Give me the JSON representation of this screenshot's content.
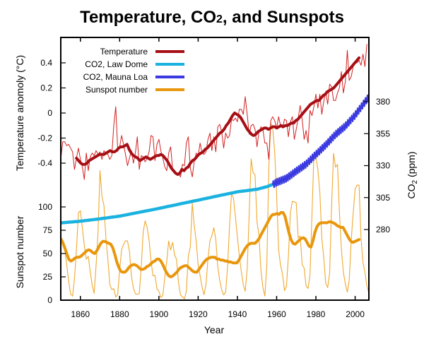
{
  "chart_data": {
    "type": "line",
    "title": "Temperature, CO2, and Sunspots",
    "title_parts": {
      "pre": "Temperature, CO",
      "sub": "2",
      "post": ", and Sunspots"
    },
    "xlabel": "Year",
    "xlim": [
      1850,
      2007
    ],
    "x_ticks": [
      1860,
      1880,
      1900,
      1920,
      1940,
      1960,
      1980,
      2000
    ],
    "axes": {
      "temperature": {
        "label": "Temperature anomoly (°C)",
        "side": "left-upper",
        "ticks": [
          -0.4,
          -0.2,
          0,
          0.2,
          0.4
        ],
        "tick_labels": [
          "-0.4",
          "-0.2",
          "0",
          "0.2",
          "0.4"
        ]
      },
      "sunspot": {
        "label": "Sunspot number",
        "side": "left-lower",
        "ticks": [
          0,
          25,
          50,
          75,
          100
        ],
        "tick_labels": [
          "0",
          "25",
          "50",
          "75",
          "100"
        ]
      },
      "co2": {
        "label_pre": "CO",
        "label_sub": "2",
        "label_post": " (ppm)",
        "side": "right",
        "ticks": [
          280,
          305,
          330,
          355,
          380
        ],
        "tick_labels": [
          "280",
          "305",
          "330",
          "355",
          "380"
        ]
      }
    },
    "legend": {
      "position": "top-left",
      "entries": [
        {
          "label": "Temperature",
          "color": "#a50f15"
        },
        {
          "label": "CO2, Law Dome",
          "color": "#1ab2e0"
        },
        {
          "label": "CO2, Mauna Loa",
          "color": "#3a3ae0"
        },
        {
          "label": "Sunspot number",
          "color": "#e8960c"
        }
      ]
    },
    "colors": {
      "temperature_annual": "#d42020",
      "temperature_smooth": "#a50f15",
      "co2_law_dome": "#1ab2e0",
      "co2_mauna_loa": "#3a3ae0",
      "sunspot_annual": "#f0a830",
      "sunspot_smooth": "#e8960c"
    },
    "series": [
      {
        "name": "Temperature (annual)",
        "axis": "temperature",
        "x_start": 1850,
        "values": [
          -0.37,
          -0.23,
          -0.23,
          -0.26,
          -0.25,
          -0.28,
          -0.31,
          -0.45,
          -0.36,
          -0.28,
          -0.37,
          -0.43,
          -0.53,
          -0.32,
          -0.46,
          -0.35,
          -0.32,
          -0.34,
          -0.3,
          -0.33,
          -0.31,
          -0.37,
          -0.3,
          -0.32,
          -0.33,
          -0.37,
          -0.34,
          -0.1,
          0.05,
          -0.28,
          -0.27,
          -0.18,
          -0.25,
          -0.33,
          -0.42,
          -0.36,
          -0.3,
          -0.4,
          -0.32,
          -0.19,
          -0.45,
          -0.34,
          -0.35,
          -0.39,
          -0.36,
          -0.31,
          -0.18,
          -0.19,
          -0.38,
          -0.25,
          -0.21,
          -0.3,
          -0.36,
          -0.43,
          -0.46,
          -0.32,
          -0.27,
          -0.45,
          -0.46,
          -0.49,
          -0.48,
          -0.51,
          -0.41,
          -0.42,
          -0.24,
          -0.19,
          -0.44,
          -0.51,
          -0.39,
          -0.32,
          -0.34,
          -0.24,
          -0.32,
          -0.33,
          -0.31,
          -0.21,
          -0.16,
          -0.3,
          -0.19,
          -0.31,
          -0.11,
          -0.09,
          -0.15,
          -0.28,
          -0.16,
          -0.2,
          -0.18,
          -0.05,
          -0.06,
          -0.04,
          -0.07,
          0.03,
          0.03,
          -0.01,
          0.13,
          -0.01,
          -0.17,
          -0.1,
          -0.09,
          -0.13,
          -0.27,
          -0.15,
          -0.11,
          -0.13,
          -0.24,
          -0.24,
          -0.37,
          -0.06,
          -0.03,
          -0.06,
          -0.12,
          -0.03,
          -0.1,
          -0.12,
          -0.05,
          -0.06,
          -0.19,
          -0.07,
          -0.03,
          -0.21,
          -0.13,
          -0.04,
          0.06,
          -0.05,
          -0.21,
          -0.14,
          -0.24,
          0.02,
          -0.02,
          0.05,
          0.15,
          0.04,
          0.15,
          -0.01,
          0.09,
          0.17,
          0.07,
          0.23,
          0.21,
          0.1,
          0.1,
          0.16,
          0.2,
          0.33,
          0.16,
          0.25,
          0.5,
          0.26,
          0.29,
          0.37,
          0.4,
          0.4,
          0.42,
          0.38,
          0.47,
          0.37,
          0.55
        ]
      },
      {
        "name": "Temperature (smoothed)",
        "axis": "temperature",
        "x_start": 1858,
        "x_end": 2002,
        "values": [
          -0.36,
          -0.38,
          -0.4,
          -0.41,
          -0.41,
          -0.4,
          -0.38,
          -0.37,
          -0.36,
          -0.35,
          -0.34,
          -0.33,
          -0.33,
          -0.33,
          -0.32,
          -0.31,
          -0.3,
          -0.31,
          -0.31,
          -0.3,
          -0.28,
          -0.27,
          -0.27,
          -0.26,
          -0.25,
          -0.29,
          -0.32,
          -0.34,
          -0.35,
          -0.36,
          -0.38,
          -0.37,
          -0.36,
          -0.35,
          -0.36,
          -0.37,
          -0.36,
          -0.35,
          -0.34,
          -0.34,
          -0.33,
          -0.34,
          -0.36,
          -0.38,
          -0.41,
          -0.44,
          -0.46,
          -0.48,
          -0.49,
          -0.48,
          -0.45,
          -0.46,
          -0.44,
          -0.43,
          -0.4,
          -0.38,
          -0.37,
          -0.35,
          -0.33,
          -0.32,
          -0.31,
          -0.29,
          -0.28,
          -0.26,
          -0.24,
          -0.22,
          -0.2,
          -0.18,
          -0.16,
          -0.15,
          -0.13,
          -0.1,
          -0.08,
          -0.05,
          -0.02,
          0.0,
          -0.01,
          -0.02,
          -0.04,
          -0.07,
          -0.1,
          -0.13,
          -0.15,
          -0.17,
          -0.18,
          -0.17,
          -0.15,
          -0.14,
          -0.13,
          -0.12,
          -0.12,
          -0.13,
          -0.12,
          -0.11,
          -0.11,
          -0.12,
          -0.11,
          -0.1,
          -0.11,
          -0.1,
          -0.1,
          -0.09,
          -0.08,
          -0.08,
          -0.06,
          -0.05,
          -0.03,
          -0.01,
          0.01,
          0.03,
          0.05,
          0.07,
          0.08,
          0.09,
          0.1,
          0.1,
          0.12,
          0.14,
          0.15,
          0.17,
          0.18,
          0.19,
          0.2,
          0.22,
          0.24,
          0.26,
          0.28,
          0.3,
          0.32,
          0.34,
          0.36,
          0.38,
          0.4,
          0.42,
          0.44
        ]
      },
      {
        "name": "CO2, Law Dome",
        "axis": "co2",
        "x": [
          1850,
          1860,
          1870,
          1880,
          1890,
          1900,
          1910,
          1920,
          1930,
          1940,
          1950,
          1955,
          1960
        ],
        "values": [
          285.2,
          286.5,
          288.4,
          290.5,
          293.5,
          296.5,
          299.8,
          303.0,
          306.3,
          309.5,
          311.5,
          313.5,
          316.5
        ]
      },
      {
        "name": "CO2, Mauna Loa",
        "axis": "co2",
        "x": [
          1958,
          1960,
          1965,
          1970,
          1975,
          1980,
          1985,
          1990,
          1995,
          2000,
          2005,
          2007
        ],
        "values": [
          315.0,
          316.9,
          320.0,
          325.7,
          331.1,
          338.7,
          346.1,
          354.4,
          360.9,
          369.5,
          379.8,
          383.7
        ],
        "seasonal_amplitude_ppm": 3.2
      },
      {
        "name": "Sunspot number (annual)",
        "axis": "sunspot",
        "x_start": 1850,
        "values": [
          66.5,
          64.5,
          54.1,
          39.0,
          20.6,
          6.7,
          4.3,
          22.7,
          54.8,
          93.8,
          95.8,
          77.2,
          59.1,
          44.0,
          47.0,
          30.5,
          16.3,
          7.3,
          37.6,
          74.0,
          139.0,
          111.2,
          101.6,
          66.2,
          44.7,
          17.0,
          11.3,
          12.4,
          3.4,
          6.0,
          32.3,
          54.3,
          59.7,
          63.7,
          63.5,
          52.2,
          25.4,
          13.1,
          6.8,
          6.3,
          7.1,
          35.6,
          73.0,
          85.1,
          78.0,
          64.0,
          41.8,
          26.2,
          26.7,
          12.1,
          9.5,
          2.7,
          5.0,
          24.4,
          42.0,
          63.5,
          53.8,
          62.0,
          48.5,
          43.9,
          18.6,
          5.7,
          3.6,
          1.4,
          9.6,
          47.4,
          57.1,
          103.9,
          80.6,
          63.6,
          37.6,
          26.1,
          14.2,
          5.8,
          16.7,
          44.3,
          63.9,
          69.0,
          77.8,
          64.9,
          35.7,
          21.2,
          11.1,
          5.7,
          8.7,
          36.1,
          79.7,
          114.4,
          109.6,
          88.8,
          67.8,
          47.5,
          30.6,
          16.3,
          9.6,
          33.2,
          92.6,
          151.6,
          136.3,
          134.7,
          83.9,
          69.4,
          31.5,
          13.9,
          4.4,
          38.0,
          141.7,
          190.2,
          184.8,
          159.0,
          112.3,
          53.9,
          37.6,
          27.9,
          10.2,
          15.1,
          47.0,
          93.8,
          105.9,
          105.5,
          104.5,
          66.6,
          68.9,
          38.0,
          34.5,
          15.5,
          12.6,
          27.5,
          92.5,
          155.4,
          154.6,
          140.4,
          115.9,
          66.6,
          45.9,
          17.9,
          13.4,
          29.2,
          100.2,
          157.6,
          142.6,
          145.7,
          94.3,
          54.6,
          29.9,
          17.5,
          8.6,
          21.5,
          64.3,
          93.3,
          119.6,
          123.3,
          123.3,
          65.9,
          40.4,
          29.8,
          15.2,
          7.5
        ]
      },
      {
        "name": "Sunspot number (smoothed)",
        "axis": "sunspot",
        "x_start": 1850,
        "x_end": 2002,
        "values": [
          66,
          62,
          56,
          50,
          44,
          42,
          43,
          45,
          46,
          46,
          47,
          49,
          51,
          53,
          54,
          53,
          51,
          50,
          53,
          57,
          61,
          63,
          63,
          62,
          61,
          60,
          56,
          49,
          41,
          35,
          31,
          30,
          30,
          32,
          35,
          37,
          38,
          38,
          37,
          35,
          33,
          33,
          34,
          36,
          37,
          39,
          41,
          42,
          44,
          44,
          42,
          38,
          33,
          29,
          26,
          25,
          26,
          28,
          30,
          33,
          35,
          36,
          37,
          37,
          35,
          33,
          31,
          30,
          30,
          33,
          36,
          39,
          42,
          44,
          45,
          46,
          46,
          46,
          44,
          44,
          43,
          43,
          42,
          42,
          41,
          41,
          40,
          40,
          40,
          43,
          47,
          51,
          55,
          58,
          60,
          61,
          61,
          61,
          63,
          66,
          70,
          74,
          78,
          82,
          86,
          90,
          92,
          92,
          93,
          92,
          94,
          94,
          90,
          81,
          72,
          65,
          61,
          60,
          62,
          64,
          66,
          67,
          66,
          62,
          58,
          57,
          64,
          73,
          79,
          82,
          83,
          83,
          83,
          83,
          84,
          84,
          83,
          82,
          80,
          79,
          78,
          78,
          74,
          70,
          66,
          63,
          62,
          63,
          64,
          65
        ]
      }
    ]
  }
}
